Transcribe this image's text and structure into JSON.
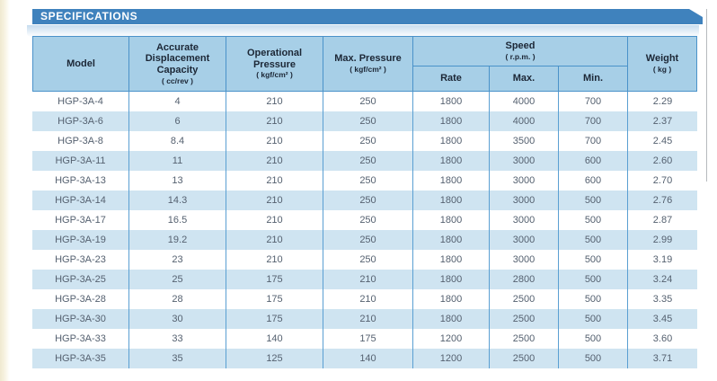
{
  "page": {
    "banner_title": "SPECIFICATIONS"
  },
  "colors": {
    "banner_bg": "#3f82bd",
    "banner_text": "#ffffff",
    "header_bg": "#a7cfe7",
    "alt_row_bg": "#cfe4f1",
    "table_border": "#4a92c9",
    "header_text": "#1c2736",
    "body_text": "#556170"
  },
  "table": {
    "header": {
      "model": "Model",
      "capacity": {
        "label": "Accurate Displacement Capacity",
        "unit": "( cc/rev )"
      },
      "operational_pressure": {
        "label": "Operational Pressure",
        "unit": "( kgf/cm² )"
      },
      "max_pressure": {
        "label": "Max. Pressure",
        "unit": "( kgf/cm² )"
      },
      "speed": {
        "label": "Speed",
        "unit": "( r.p.m. )",
        "sub": [
          "Rate",
          "Max.",
          "Min."
        ]
      },
      "weight": {
        "label": "Weight",
        "unit": "( kg )"
      }
    },
    "rows": [
      [
        "HGP-3A-4",
        "4",
        "210",
        "250",
        "1800",
        "4000",
        "700",
        "2.29"
      ],
      [
        "HGP-3A-6",
        "6",
        "210",
        "250",
        "1800",
        "4000",
        "700",
        "2.37"
      ],
      [
        "HGP-3A-8",
        "8.4",
        "210",
        "250",
        "1800",
        "3500",
        "700",
        "2.45"
      ],
      [
        "HGP-3A-11",
        "11",
        "210",
        "250",
        "1800",
        "3000",
        "600",
        "2.60"
      ],
      [
        "HGP-3A-13",
        "13",
        "210",
        "250",
        "1800",
        "3000",
        "600",
        "2.70"
      ],
      [
        "HGP-3A-14",
        "14.3",
        "210",
        "250",
        "1800",
        "3000",
        "500",
        "2.76"
      ],
      [
        "HGP-3A-17",
        "16.5",
        "210",
        "250",
        "1800",
        "3000",
        "500",
        "2.87"
      ],
      [
        "HGP-3A-19",
        "19.2",
        "210",
        "250",
        "1800",
        "3000",
        "500",
        "2.99"
      ],
      [
        "HGP-3A-23",
        "23",
        "210",
        "250",
        "1800",
        "3000",
        "500",
        "3.19"
      ],
      [
        "HGP-3A-25",
        "25",
        "175",
        "210",
        "1800",
        "2800",
        "500",
        "3.24"
      ],
      [
        "HGP-3A-28",
        "28",
        "175",
        "210",
        "1800",
        "2500",
        "500",
        "3.35"
      ],
      [
        "HGP-3A-30",
        "30",
        "175",
        "210",
        "1800",
        "2500",
        "500",
        "3.45"
      ],
      [
        "HGP-3A-33",
        "33",
        "140",
        "175",
        "1200",
        "2500",
        "500",
        "3.60"
      ],
      [
        "HGP-3A-35",
        "35",
        "125",
        "140",
        "1200",
        "2500",
        "500",
        "3.71"
      ]
    ]
  }
}
